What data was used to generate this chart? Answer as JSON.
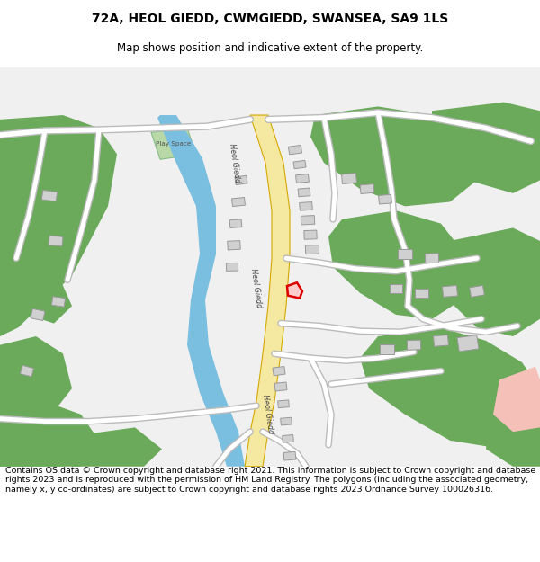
{
  "title": "72A, HEOL GIEDD, CWMGIEDD, SWANSEA, SA9 1LS",
  "subtitle": "Map shows position and indicative extent of the property.",
  "footer": "Contains OS data © Crown copyright and database right 2021. This information is subject to Crown copyright and database rights 2023 and is reproduced with the permission of HM Land Registry. The polygons (including the associated geometry, namely x, y co-ordinates) are subject to Crown copyright and database rights 2023 Ordnance Survey 100026316.",
  "bg_color": "#ffffff",
  "map_bg": "#f0f0f0",
  "green_color": "#6aaa5a",
  "river_color": "#7abfdf",
  "road_main_fill": "#f5e8a0",
  "road_main_edge": "#d4a800",
  "road_minor_color": "#ffffff",
  "road_minor_edge": "#bbbbbb",
  "building_color": "#d0d0d0",
  "building_edge": "#999999",
  "highlight_color": "#dd0000",
  "highlight_fill": "#ffcccc",
  "play_space_color": "#b8d8a8",
  "pink_color": "#f5c0b8",
  "title_fontsize": 10,
  "subtitle_fontsize": 8.5,
  "footer_fontsize": 6.8
}
